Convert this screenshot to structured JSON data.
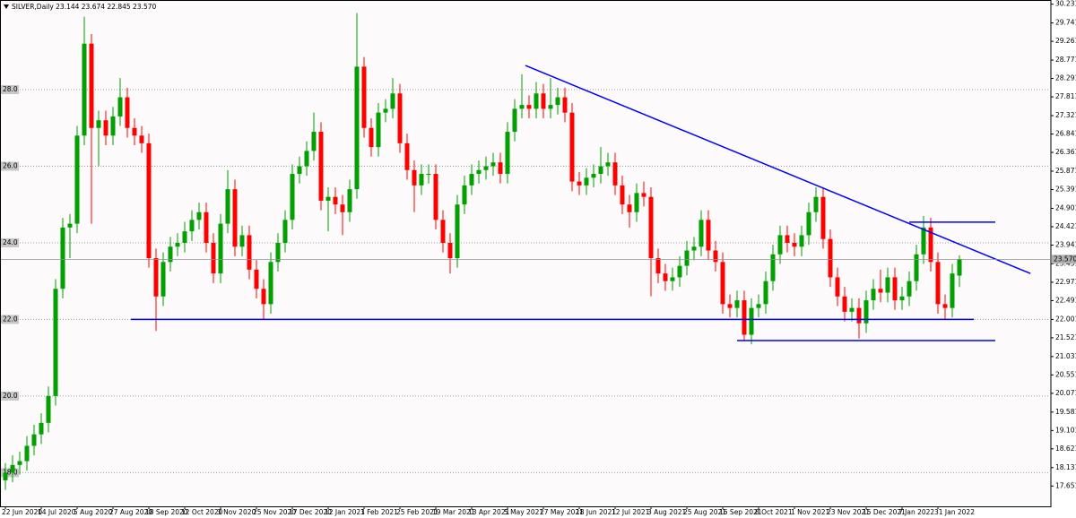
{
  "chart_data": {
    "type": "candlestick",
    "title": "SILVER,Daily 23.144 23.674 22.845 23.570",
    "categories": [
      "22 Jun 2020",
      null,
      null,
      null,
      null,
      "14 Jul 2020",
      null,
      null,
      null,
      null,
      "5 Aug 2020",
      null,
      null,
      null,
      null,
      "27 Aug 2020",
      null,
      null,
      null,
      null,
      "18 Sep 2020",
      null,
      null,
      null,
      null,
      "12 Oct 2020",
      null,
      null,
      null,
      null,
      "3 Nov 2020",
      null,
      null,
      null,
      null,
      "25 Nov 2020",
      null,
      null,
      null,
      null,
      "17 Dec 2020",
      null,
      null,
      null,
      null,
      "12 Jan 2021",
      null,
      null,
      null,
      null,
      "3 Feb 2021",
      null,
      null,
      null,
      null,
      "25 Feb 2021",
      null,
      null,
      null,
      null,
      "19 Mar 2021",
      null,
      null,
      null,
      null,
      "13 Apr 2021",
      null,
      null,
      null,
      null,
      "5 May 2021",
      null,
      null,
      null,
      null,
      "27 May 2021",
      null,
      null,
      null,
      null,
      "18 Jun 2021",
      null,
      null,
      null,
      null,
      "12 Jul 2021",
      null,
      null,
      null,
      null,
      "3 Aug 2021",
      null,
      null,
      null,
      null,
      "25 Aug 2021",
      null,
      null,
      null,
      null,
      "16 Sep 2021",
      null,
      null,
      null,
      null,
      "8 Oct 2021",
      null,
      null,
      null,
      null,
      "1 Nov 2021",
      null,
      null,
      null,
      null,
      "23 Nov 2021",
      null,
      null,
      null,
      null,
      "15 Dec 2021",
      null,
      null,
      null,
      null,
      "7 Jan 2022",
      null,
      null,
      null,
      null,
      "31 Jan 2022",
      null,
      null,
      null
    ],
    "open": [
      17.8,
      18.0,
      18.2,
      18.3,
      18.7,
      19.0,
      19.3,
      20.0,
      22.8,
      24.4,
      24.5,
      26.8,
      29.2,
      27.0,
      27.2,
      26.8,
      27.3,
      27.8,
      27.0,
      26.8,
      26.6,
      23.6,
      22.6,
      23.5,
      23.9,
      24.0,
      24.3,
      24.6,
      24.8,
      24.0,
      23.2,
      24.5,
      25.4,
      23.9,
      24.2,
      23.3,
      22.8,
      22.4,
      23.5,
      24.0,
      24.6,
      25.8,
      26.0,
      26.4,
      26.9,
      25.1,
      25.2,
      25.0,
      24.8,
      25.4,
      28.6,
      27.0,
      26.5,
      27.4,
      27.5,
      27.9,
      26.6,
      25.9,
      25.5,
      25.8,
      25.8,
      24.6,
      24.0,
      23.6,
      25.0,
      25.5,
      25.8,
      25.9,
      26.0,
      26.1,
      25.8,
      26.9,
      27.5,
      27.6,
      27.5,
      27.9,
      27.5,
      27.6,
      27.8,
      27.4,
      25.6,
      25.5,
      25.7,
      25.8,
      26.0,
      26.1,
      25.5,
      25.0,
      24.8,
      25.3,
      25.2,
      23.6,
      23.2,
      23.0,
      23.1,
      23.4,
      23.8,
      23.9,
      24.6,
      23.8,
      23.5,
      22.4,
      22.3,
      22.5,
      21.6,
      22.3,
      22.4,
      23.0,
      23.7,
      24.2,
      24.0,
      23.9,
      24.2,
      24.8,
      25.2,
      24.1,
      23.1,
      22.6,
      22.2,
      22.3,
      21.9,
      22.5,
      22.8,
      22.7,
      23.1,
      22.5,
      22.6,
      23.0,
      23.7,
      24.4,
      23.5,
      22.4,
      22.3,
      23.144
    ],
    "high": [
      18.25,
      18.45,
      18.55,
      18.95,
      19.25,
      19.55,
      20.25,
      23.05,
      24.65,
      24.75,
      27.05,
      29.9,
      29.45,
      27.45,
      27.45,
      27.55,
      28.3,
      28.05,
      27.25,
      27.05,
      26.85,
      23.85,
      23.75,
      24.15,
      24.25,
      24.55,
      24.85,
      25.05,
      25.05,
      24.25,
      24.75,
      25.9,
      25.65,
      24.45,
      24.45,
      23.55,
      23.05,
      23.75,
      24.25,
      24.85,
      26.05,
      26.25,
      26.65,
      27.4,
      27.15,
      25.45,
      25.45,
      25.25,
      25.65,
      30.0,
      28.85,
      27.25,
      27.65,
      27.75,
      28.3,
      28.15,
      26.85,
      26.15,
      26.05,
      26.05,
      26.05,
      24.85,
      24.25,
      25.25,
      25.75,
      26.05,
      26.15,
      26.25,
      26.35,
      26.35,
      27.15,
      27.75,
      28.4,
      27.85,
      28.2,
      28.15,
      28.3,
      28.05,
      28.05,
      27.65,
      25.85,
      25.95,
      26.05,
      26.5,
      26.35,
      26.35,
      25.75,
      25.25,
      25.55,
      25.6,
      25.45,
      23.85,
      23.45,
      23.35,
      23.65,
      24.05,
      24.15,
      24.85,
      24.85,
      24.05,
      23.75,
      22.65,
      22.75,
      22.75,
      22.55,
      22.65,
      23.25,
      23.95,
      24.45,
      24.45,
      24.25,
      24.45,
      25.05,
      25.45,
      25.45,
      24.35,
      23.35,
      22.85,
      22.55,
      22.55,
      22.75,
      23.05,
      23.3,
      23.35,
      23.35,
      22.85,
      23.25,
      23.95,
      24.7,
      24.65,
      23.75,
      22.65,
      23.45,
      23.674
    ],
    "low": [
      17.55,
      17.75,
      17.95,
      18.05,
      18.45,
      18.75,
      19.05,
      19.75,
      22.55,
      23.6,
      24.25,
      26.55,
      24.5,
      26.0,
      26.55,
      26.55,
      27.05,
      26.75,
      26.55,
      26.35,
      23.35,
      21.7,
      22.35,
      23.25,
      23.65,
      23.75,
      24.05,
      24.35,
      23.75,
      22.95,
      22.95,
      24.25,
      23.65,
      23.65,
      23.05,
      22.55,
      22.0,
      22.15,
      23.25,
      23.75,
      24.35,
      25.55,
      25.75,
      26.15,
      24.85,
      24.3,
      24.75,
      24.2,
      24.55,
      25.15,
      26.75,
      26.25,
      26.25,
      27.15,
      27.25,
      26.35,
      25.65,
      24.8,
      25.25,
      25.55,
      24.35,
      23.75,
      23.2,
      23.35,
      24.75,
      25.25,
      25.55,
      25.65,
      25.75,
      25.55,
      25.55,
      26.65,
      27.25,
      27.25,
      27.25,
      27.25,
      27.25,
      27.35,
      27.15,
      25.35,
      25.25,
      25.25,
      25.45,
      25.55,
      25.75,
      25.25,
      24.75,
      24.4,
      24.55,
      24.95,
      22.6,
      22.95,
      22.75,
      22.75,
      22.85,
      23.15,
      23.55,
      23.65,
      23.55,
      23.25,
      22.15,
      22.05,
      22.05,
      21.45,
      21.35,
      22.05,
      22.15,
      22.75,
      23.45,
      23.75,
      23.65,
      23.65,
      23.95,
      24.55,
      23.85,
      22.85,
      22.35,
      21.95,
      21.95,
      21.5,
      21.65,
      22.25,
      22.45,
      22.45,
      22.25,
      22.25,
      22.35,
      22.75,
      23.45,
      23.25,
      22.15,
      22.0,
      22.05,
      22.845
    ],
    "close": [
      18.0,
      18.2,
      18.3,
      18.7,
      19.0,
      19.3,
      20.0,
      22.8,
      24.4,
      24.5,
      26.8,
      29.2,
      27.0,
      27.2,
      26.8,
      27.3,
      27.8,
      27.0,
      26.8,
      26.6,
      23.6,
      22.6,
      23.5,
      23.9,
      24.0,
      24.3,
      24.6,
      24.8,
      24.0,
      23.2,
      24.5,
      25.4,
      23.9,
      24.2,
      23.3,
      22.8,
      22.4,
      23.5,
      24.0,
      24.6,
      25.8,
      26.0,
      26.4,
      26.9,
      25.1,
      25.2,
      25.0,
      24.8,
      25.4,
      28.6,
      27.0,
      26.5,
      27.4,
      27.5,
      27.9,
      26.6,
      25.9,
      25.5,
      25.8,
      25.8,
      24.6,
      24.0,
      23.6,
      25.0,
      25.5,
      25.8,
      25.9,
      26.0,
      26.1,
      25.8,
      26.9,
      27.5,
      27.6,
      27.5,
      27.9,
      27.5,
      27.6,
      27.8,
      27.4,
      25.6,
      25.5,
      25.7,
      25.8,
      26.0,
      26.1,
      25.5,
      25.0,
      24.8,
      25.3,
      25.2,
      23.6,
      23.2,
      23.0,
      23.1,
      23.4,
      23.8,
      23.9,
      24.6,
      23.8,
      23.5,
      22.4,
      22.3,
      22.5,
      21.6,
      22.3,
      22.4,
      23.0,
      23.7,
      24.2,
      24.0,
      23.9,
      24.2,
      24.8,
      25.2,
      24.1,
      23.1,
      22.6,
      22.2,
      22.3,
      21.9,
      22.5,
      22.8,
      22.7,
      23.1,
      22.5,
      22.6,
      23.0,
      23.7,
      24.4,
      23.5,
      22.4,
      22.3,
      23.2,
      23.57
    ],
    "up_color": "#00a000",
    "down_color": "#ff0000",
    "ylim": [
      17.12,
      30.34
    ],
    "yticks": [
      30.231,
      29.741,
      29.261,
      28.771,
      28.291,
      27.811,
      27.321,
      26.841,
      26.361,
      25.871,
      25.391,
      24.901,
      24.421,
      23.941,
      23.451,
      22.971,
      22.491,
      22.001,
      21.521,
      21.031,
      20.551,
      20.071,
      19.581,
      19.101,
      18.621,
      18.131,
      17.651
    ],
    "grid_levels": [
      {
        "value": 28,
        "label": "28.0"
      },
      {
        "value": 26,
        "label": "26.0"
      },
      {
        "value": 24,
        "label": "24.0"
      },
      {
        "value": 22,
        "label": "22.0"
      },
      {
        "value": 20,
        "label": "20.0"
      },
      {
        "value": 18,
        "label": "18.0"
      }
    ],
    "current_price": {
      "value": 23.57,
      "label": "23.570"
    },
    "lines": [
      {
        "x": [
          72.5,
          142.9
        ],
        "y": [
          28.63,
          23.2
        ],
        "color": "#0000ff"
      },
      {
        "x": [
          17.5,
          135
        ],
        "y": [
          22.0,
          22.0
        ],
        "color": "#0000ff"
      },
      {
        "x": [
          102,
          138
        ],
        "y": [
          21.45,
          21.45
        ],
        "color": "#0000ff"
      },
      {
        "x": [
          126,
          138
        ],
        "y": [
          24.54,
          24.54
        ],
        "color": "#0000ff"
      }
    ]
  }
}
